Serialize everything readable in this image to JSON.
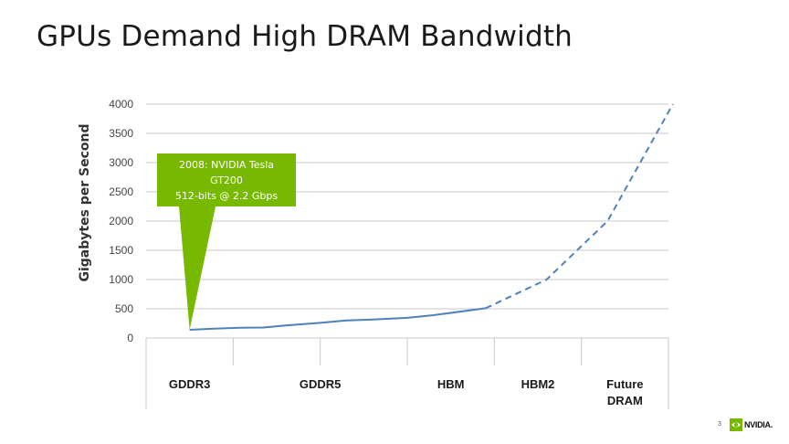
{
  "slide": {
    "title": "GPUs Demand High DRAM Bandwidth",
    "page_number": "3",
    "logo_text": "NVIDIA."
  },
  "chart_data": {
    "type": "line",
    "title": "",
    "ylabel": "Gigabytes per Second",
    "xlabel": "",
    "ylim": [
      0,
      4000
    ],
    "yticks": [
      0,
      500,
      1000,
      1500,
      2000,
      2500,
      3000,
      3500,
      4000
    ],
    "grid": true,
    "x_groups": [
      {
        "label": "GDDR3",
        "start": 0,
        "end": 1
      },
      {
        "label": "GDDR5",
        "start": 1,
        "end": 3
      },
      {
        "label": "HBM",
        "start": 3,
        "end": 4
      },
      {
        "label": "HBM2",
        "start": 4,
        "end": 5
      },
      {
        "label": "Future\nDRAM",
        "start": 5,
        "end": 6
      }
    ],
    "series": [
      {
        "style": "solid",
        "color": "#4f81bd",
        "points": [
          [
            0.5,
            140
          ],
          [
            0.78,
            160
          ],
          [
            1.06,
            175
          ],
          [
            1.35,
            180
          ],
          [
            1.6,
            215
          ],
          [
            2.0,
            260
          ],
          [
            2.3,
            300
          ],
          [
            2.6,
            315
          ],
          [
            3.0,
            345
          ],
          [
            3.3,
            390
          ],
          [
            3.9,
            510
          ]
        ]
      },
      {
        "style": "dashed",
        "color": "#4f81bd",
        "points": [
          [
            3.9,
            510
          ],
          [
            4.6,
            1000
          ],
          [
            5.3,
            2000
          ],
          [
            6.05,
            4000
          ]
        ]
      }
    ],
    "annotations": [
      {
        "lines": [
          "2008: NVIDIA Tesla",
          "GT200",
          "512-bits @ 2.2 Gbps"
        ],
        "color": "#76b900",
        "point": [
          0.5,
          140
        ]
      }
    ]
  }
}
